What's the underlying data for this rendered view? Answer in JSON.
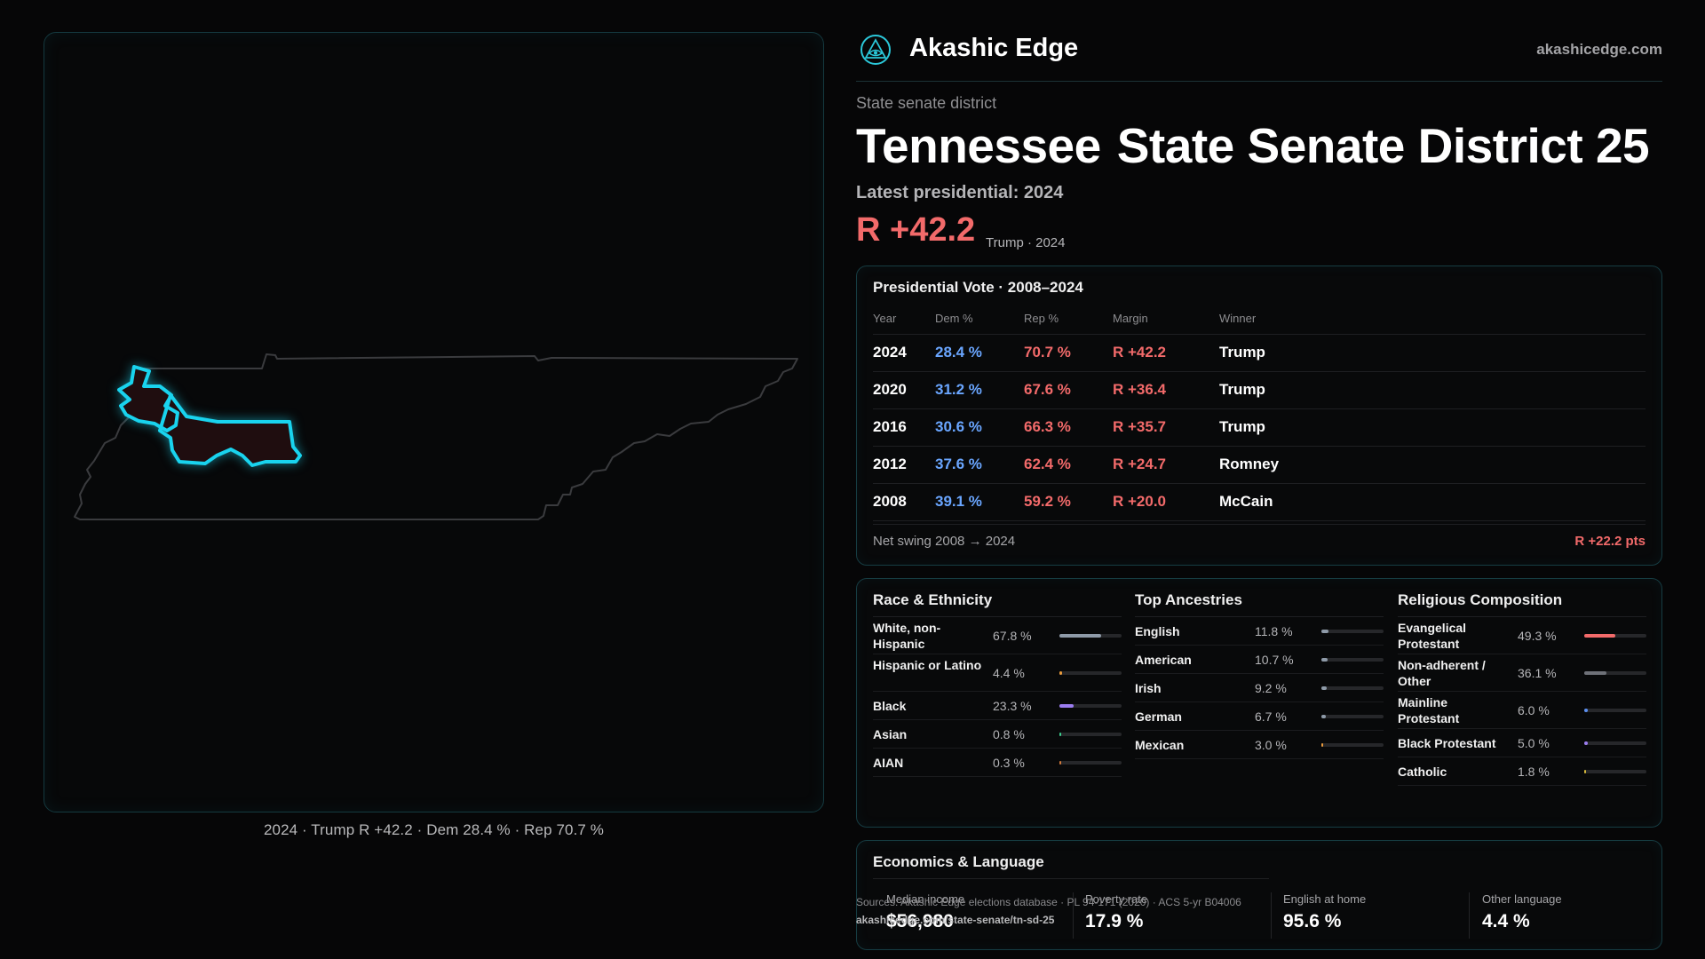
{
  "map": {
    "caption": "2024 · Trump R +42.2 · Dem 28.4 % · Rep 70.7 %",
    "highlight_color": "#19d3ee"
  },
  "brand": {
    "name": "Akashic Edge",
    "url": "akashicedge.com",
    "logo_icon": "triangle-eye-icon"
  },
  "header": {
    "kicker": "State senate district",
    "title_state": "Tennessee",
    "title_district": "State Senate District 25",
    "latest": "Latest presidential: 2024",
    "margin": "R +42.2",
    "margin_sub": "Trump · 2024"
  },
  "presidential": {
    "title": "Presidential Vote · 2008–2024",
    "columns": [
      "Year",
      "Dem %",
      "Rep %",
      "Margin",
      "Winner"
    ],
    "rows": [
      {
        "year": "2024",
        "dem": "28.4 %",
        "rep": "70.7 %",
        "margin": "R +42.2",
        "winner": "Trump"
      },
      {
        "year": "2020",
        "dem": "31.2 %",
        "rep": "67.6 %",
        "margin": "R +36.4",
        "winner": "Trump"
      },
      {
        "year": "2016",
        "dem": "30.6 %",
        "rep": "66.3 %",
        "margin": "R +35.7",
        "winner": "Trump"
      },
      {
        "year": "2012",
        "dem": "37.6 %",
        "rep": "62.4 %",
        "margin": "R +24.7",
        "winner": "Romney"
      },
      {
        "year": "2008",
        "dem": "39.1 %",
        "rep": "59.2 %",
        "margin": "R +20.0",
        "winner": "McCain"
      }
    ],
    "net_swing_label": "Net swing 2008 → 2024",
    "net_swing_value": "R +22.2 pts"
  },
  "race": {
    "title": "Race & Ethnicity",
    "items": [
      {
        "label": "White, non-Hispanic",
        "pct": "67.8 %",
        "value": 67.8,
        "color": "#8e9aa8"
      },
      {
        "label": "Hispanic or Latino",
        "pct": "4.4 %",
        "value": 4.4,
        "color": "#e89a3c"
      },
      {
        "label": "Black",
        "pct": "23.3 %",
        "value": 23.3,
        "color": "#9b7df0"
      },
      {
        "label": "Asian",
        "pct": "0.8 %",
        "value": 0.8,
        "color": "#3ccf8e"
      },
      {
        "label": "AIAN",
        "pct": "0.3 %",
        "value": 0.3,
        "color": "#d0783a"
      }
    ]
  },
  "ancestry": {
    "title": "Top Ancestries",
    "items": [
      {
        "label": "English",
        "pct": "11.8 %",
        "value": 11.8,
        "color": "#8e9aa8"
      },
      {
        "label": "American",
        "pct": "10.7 %",
        "value": 10.7,
        "color": "#8e9aa8"
      },
      {
        "label": "Irish",
        "pct": "9.2 %",
        "value": 9.2,
        "color": "#8e9aa8"
      },
      {
        "label": "German",
        "pct": "6.7 %",
        "value": 6.7,
        "color": "#8e9aa8"
      },
      {
        "label": "Mexican",
        "pct": "3.0 %",
        "value": 3.0,
        "color": "#e89a3c"
      }
    ]
  },
  "religion": {
    "title": "Religious Composition",
    "items": [
      {
        "label": "Evangelical Protestant",
        "pct": "49.3 %",
        "value": 49.3,
        "color": "#f26a6a"
      },
      {
        "label": "Non-adherent / Other",
        "pct": "36.1 %",
        "value": 36.1,
        "color": "#6e7178"
      },
      {
        "label": "Mainline Protestant",
        "pct": "6.0 %",
        "value": 6.0,
        "color": "#5b8ff0"
      },
      {
        "label": "Black Protestant",
        "pct": "5.0 %",
        "value": 5.0,
        "color": "#9b7df0"
      },
      {
        "label": "Catholic",
        "pct": "1.8 %",
        "value": 1.8,
        "color": "#d4b83c"
      }
    ]
  },
  "economics": {
    "title": "Economics & Language",
    "items": [
      {
        "label": "Median income",
        "value": "$56,980"
      },
      {
        "label": "Poverty rate",
        "value": "17.9 %"
      },
      {
        "label": "English at home",
        "value": "95.6 %"
      },
      {
        "label": "Other language",
        "value": "4.4 %"
      }
    ]
  },
  "footer": {
    "sources": "Sources: Akashic Edge elections database · PL 94-171 (2020) · ACS 5-yr B04006",
    "url": "akashicedge.com/state-senate/tn-sd-25"
  }
}
